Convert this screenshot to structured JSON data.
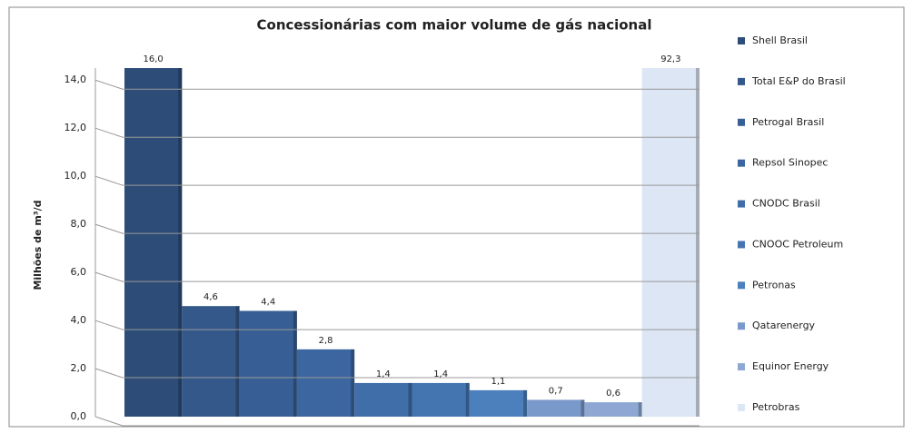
{
  "chart_data": {
    "type": "bar",
    "title": "Concessionárias com maior volume de gás nacional",
    "y_label": "Milhões de m³/d",
    "categories": [
      "Shell Brasil",
      "Total E&P do Brasil",
      "Petrogal Brasil",
      "Repsol Sinopec",
      "CNODC Brasil",
      "CNOOC Petroleum",
      "Petronas",
      "Qatarenergy",
      "Equinor Energy",
      "Petrobras"
    ],
    "values": [
      16.0,
      4.6,
      4.4,
      2.8,
      1.4,
      1.4,
      1.1,
      0.7,
      0.6,
      92.3
    ],
    "value_labels": [
      "16,0",
      "4,6",
      "4,4",
      "2,8",
      "1,4",
      "1,4",
      "1,1",
      "0,7",
      "0,6",
      "92,3"
    ],
    "colors": [
      "#2d4d78",
      "#34588a",
      "#385f95",
      "#3c669f",
      "#406ea9",
      "#4575b1",
      "#4c80bd",
      "#7a99cb",
      "#8ea8d3",
      "#dce6f5"
    ],
    "ylim": [
      0,
      14.5
    ],
    "yticks": [
      {
        "value": 0,
        "label": "0,0"
      },
      {
        "value": 2,
        "label": "2,0"
      },
      {
        "value": 4,
        "label": "4,0"
      },
      {
        "value": 6,
        "label": "6,0"
      },
      {
        "value": 8,
        "label": "8,0"
      },
      {
        "value": 10,
        "label": "10,0"
      },
      {
        "value": 12,
        "label": "12,0"
      },
      {
        "value": 14,
        "label": "14,0"
      }
    ],
    "grid": true,
    "legend": "right"
  }
}
